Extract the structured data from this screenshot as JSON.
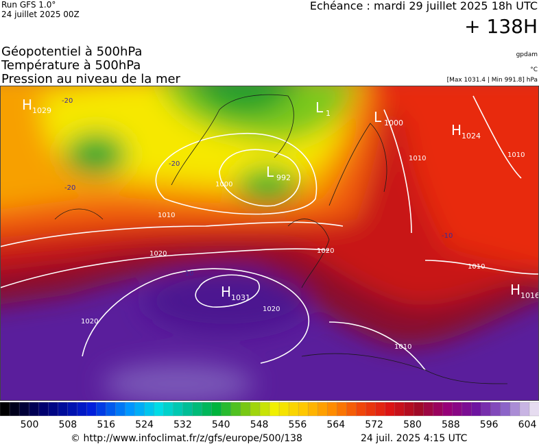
{
  "header": {
    "run": "Run GFS 1.0°",
    "run_date": "24 juillet 2025 00Z",
    "echeance": "Echéance : mardi 29 juillet 2025 18h UTC",
    "lead": "+ 138H",
    "fields": [
      "Géopotentiel à 500hPa",
      "Température à 500hPa",
      "Pression au niveau de la mer"
    ],
    "units": [
      "gpdam",
      "°C",
      "[Max 1031.4 | Min 991.8] hPa"
    ]
  },
  "map": {
    "pressure_centers": [
      {
        "type": "H",
        "value": "1029"
      },
      {
        "type": "L",
        "value": "1"
      },
      {
        "type": "L",
        "value": "1000"
      },
      {
        "type": "H",
        "value": "1024"
      },
      {
        "type": "L",
        "value": "992"
      },
      {
        "type": "H",
        "value": "1031"
      },
      {
        "type": "H",
        "value": "1016"
      }
    ],
    "isobar_labels": [
      "1010",
      "1020",
      "1020",
      "1020",
      "1020",
      "1010",
      "1010",
      "1010",
      "1000",
      "1010"
    ],
    "isotherm_labels": [
      "-20",
      "-20",
      "-20",
      "-10",
      "-10"
    ]
  },
  "colorbar": {
    "labels": [
      500,
      508,
      516,
      524,
      532,
      540,
      548,
      556,
      564,
      572,
      580,
      588,
      596,
      604
    ]
  },
  "footer": {
    "url": "© http://www.infoclimat.fr/z/gfs/europe/500/138",
    "timestamp": "24 juil. 2025  4:15 UTC"
  }
}
